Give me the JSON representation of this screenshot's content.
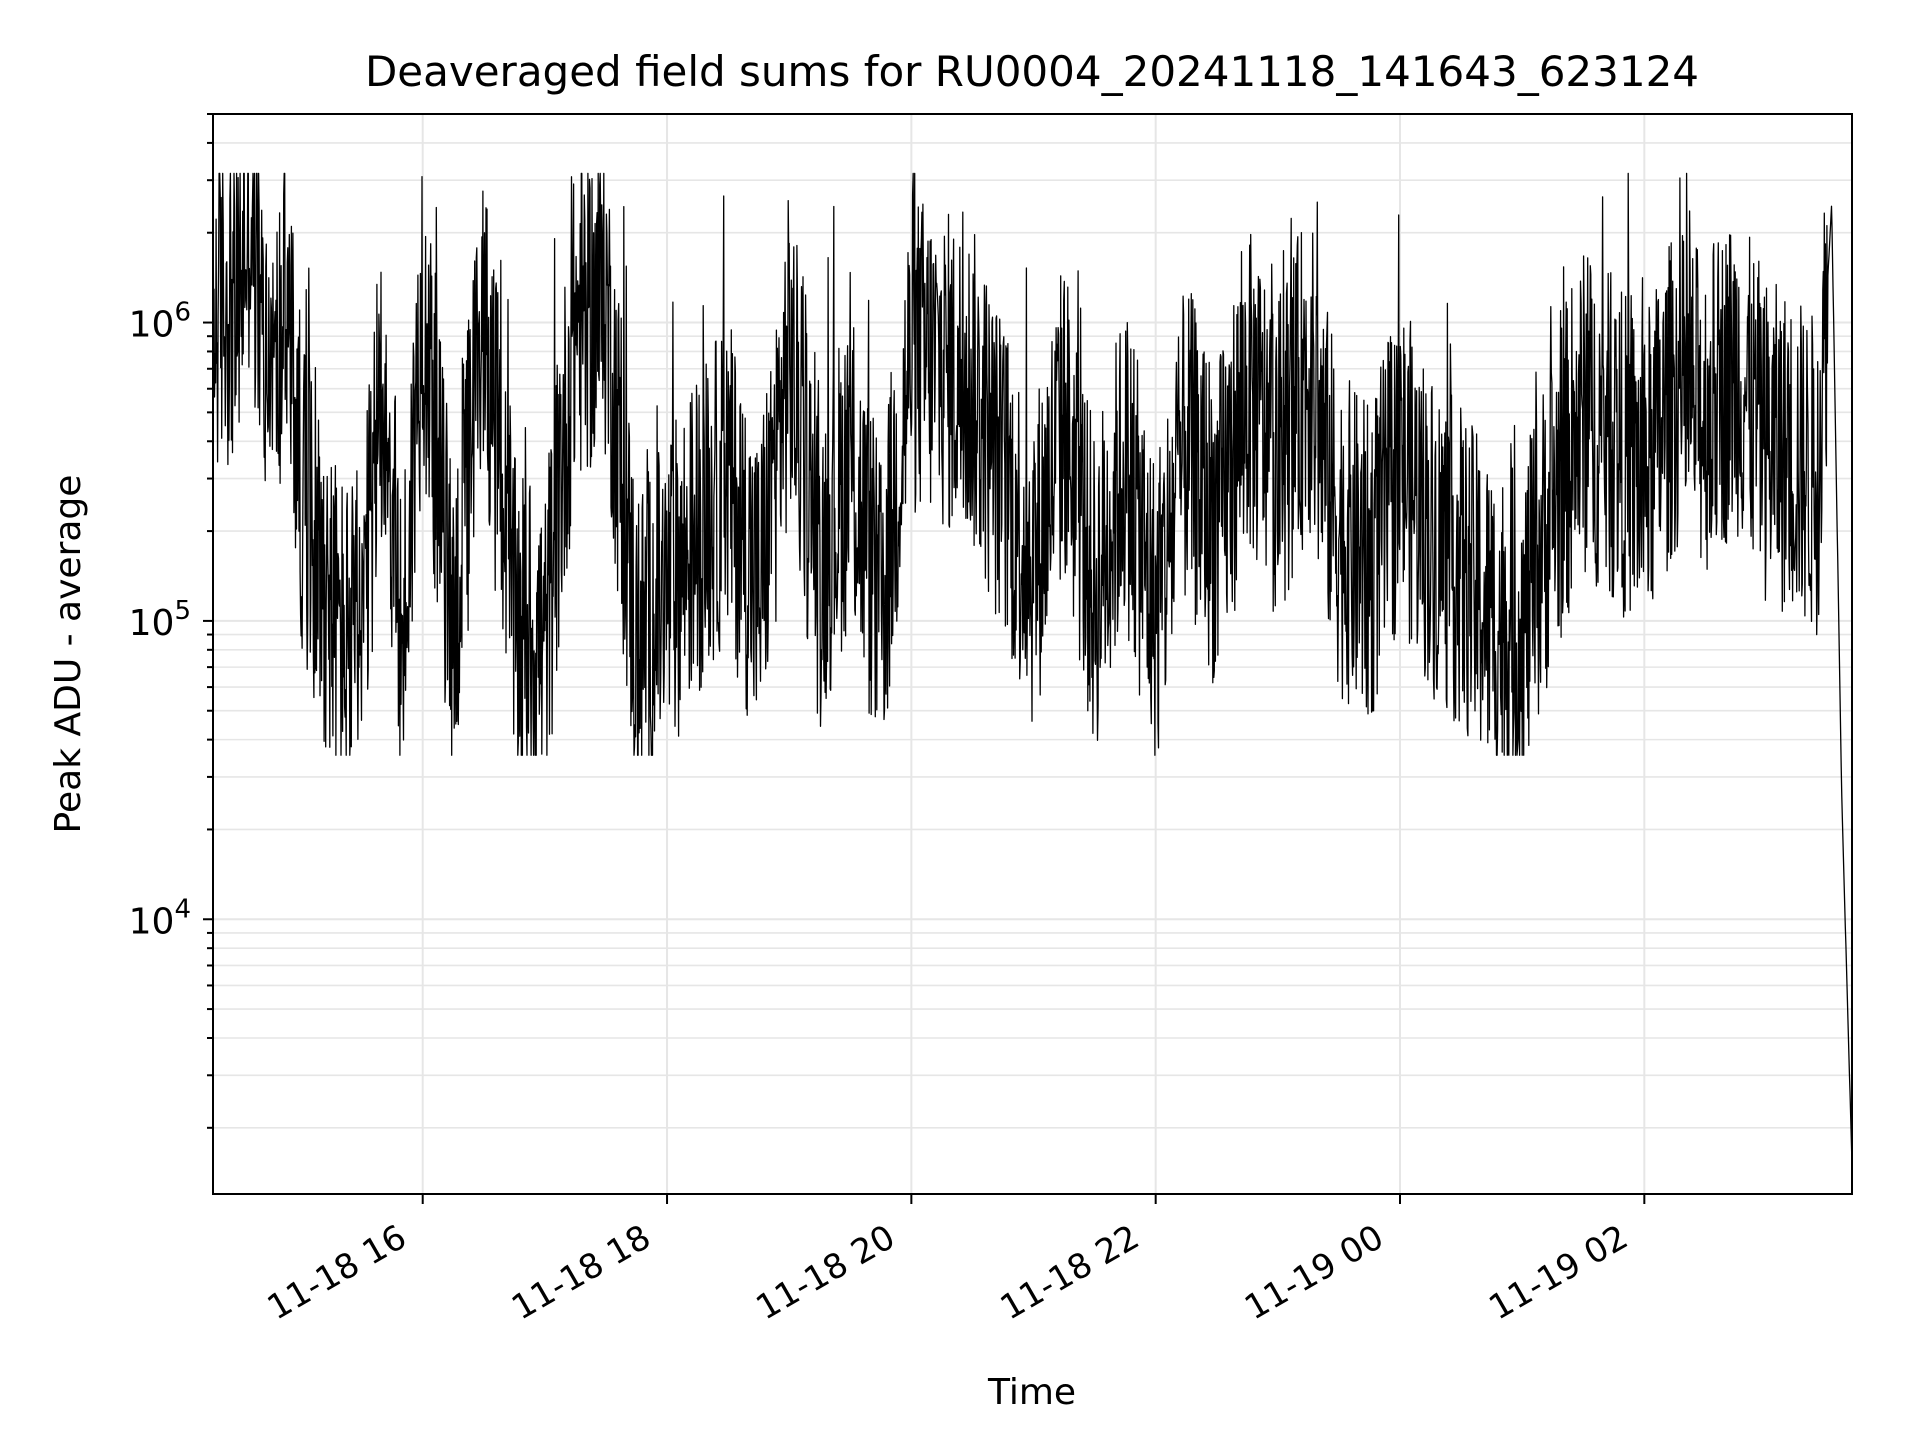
{
  "chart_data": {
    "type": "line",
    "title": "Deaveraged field sums for RU0004_20241118_141643_623124",
    "xlabel": "Time",
    "ylabel": "Peak ADU - average",
    "yscale": "log",
    "xlim": [
      "2024-11-18 14:17",
      "2024-11-19 03:42"
    ],
    "ylim": [
      1200,
      5000000
    ],
    "grid": true,
    "colors": {
      "line": "#000000",
      "grid": "#e6e6e6",
      "axis": "#000000"
    },
    "x_ticks": [
      {
        "value": "2024-11-18 16:00",
        "label": "11-18 16"
      },
      {
        "value": "2024-11-18 18:00",
        "label": "11-18 18"
      },
      {
        "value": "2024-11-18 20:00",
        "label": "11-18 20"
      },
      {
        "value": "2024-11-18 22:00",
        "label": "11-18 22"
      },
      {
        "value": "2024-11-19 00:00",
        "label": "11-19 00"
      },
      {
        "value": "2024-11-19 02:00",
        "label": "11-19 02"
      }
    ],
    "y_ticks": [
      {
        "value": 10000,
        "base": "10",
        "exp": "4"
      },
      {
        "value": 100000,
        "base": "10",
        "exp": "5"
      },
      {
        "value": 1000000,
        "base": "10",
        "exp": "6"
      }
    ],
    "series": [
      {
        "x": [
          "2024-11-18 14:17",
          "2024-11-18 14:23",
          "2024-11-18 14:29",
          "2024-11-18 14:35",
          "2024-11-18 14:41",
          "2024-11-18 14:47",
          "2024-11-18 14:53",
          "2024-11-18 15:00",
          "2024-11-18 15:10",
          "2024-11-18 15:20",
          "2024-11-18 15:30",
          "2024-11-18 15:40",
          "2024-11-18 15:50",
          "2024-11-18 16:00",
          "2024-11-18 16:15",
          "2024-11-18 16:30",
          "2024-11-18 16:45",
          "2024-11-18 17:00",
          "2024-11-18 17:15",
          "2024-11-18 17:30",
          "2024-11-18 17:45",
          "2024-11-18 18:00",
          "2024-11-18 18:15",
          "2024-11-18 18:30",
          "2024-11-18 18:45",
          "2024-11-18 19:00",
          "2024-11-18 19:15",
          "2024-11-18 19:30",
          "2024-11-18 19:45",
          "2024-11-18 20:00",
          "2024-11-18 20:15",
          "2024-11-18 20:30",
          "2024-11-18 20:45",
          "2024-11-18 21:00",
          "2024-11-18 21:15",
          "2024-11-18 21:30",
          "2024-11-18 21:45",
          "2024-11-18 22:00",
          "2024-11-18 22:15",
          "2024-11-18 22:30",
          "2024-11-18 22:45",
          "2024-11-18 23:00",
          "2024-11-18 23:15",
          "2024-11-18 23:30",
          "2024-11-18 23:45",
          "2024-11-19 00:00",
          "2024-11-19 00:15",
          "2024-11-19 00:30",
          "2024-11-19 00:45",
          "2024-11-19 01:00",
          "2024-11-19 01:15",
          "2024-11-19 01:30",
          "2024-11-19 01:45",
          "2024-11-19 02:00",
          "2024-11-19 02:15",
          "2024-11-19 02:30",
          "2024-11-19 02:45",
          "2024-11-19 03:00",
          "2024-11-19 03:15",
          "2024-11-19 03:25",
          "2024-11-19 03:32",
          "2024-11-19 03:37",
          "2024-11-19 03:42"
        ],
        "y": [
          1000000,
          1200000,
          1100000,
          2500000,
          900000,
          600000,
          1200000,
          300000,
          150000,
          90000,
          80000,
          700000,
          75000,
          1200000,
          90000,
          1100000,
          100000,
          80000,
          1000000,
          1200000,
          80000,
          120000,
          200000,
          300000,
          120000,
          800000,
          150000,
          350000,
          100000,
          800000,
          700000,
          600000,
          300000,
          150000,
          500000,
          120000,
          350000,
          100000,
          400000,
          200000,
          600000,
          350000,
          700000,
          200000,
          150000,
          350000,
          200000,
          150000,
          100000,
          90000,
          250000,
          500000,
          400000,
          300000,
          600000,
          500000,
          700000,
          400000,
          350000,
          300000,
          2500000,
          25000,
          1500
        ]
      }
    ]
  }
}
